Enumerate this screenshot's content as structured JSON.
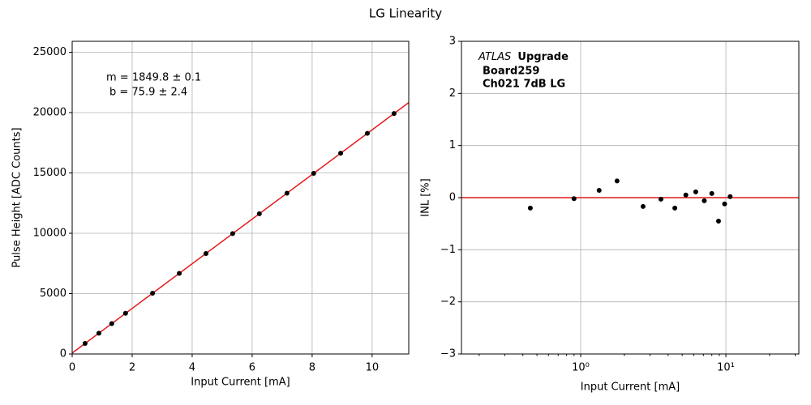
{
  "title": "LG Linearity",
  "chart_data": [
    {
      "type": "scatter",
      "x": [
        0.43,
        0.89,
        1.32,
        1.78,
        2.68,
        3.57,
        4.46,
        5.35,
        6.24,
        7.16,
        8.05,
        8.95,
        9.84,
        10.73
      ],
      "values": [
        871,
        1722,
        2518,
        3369,
        5033,
        6680,
        8326,
        9972,
        11619,
        13321,
        14967,
        16632,
        18278,
        19924
      ],
      "color": "#000000",
      "fit": {
        "x": [
          0,
          11.22
        ],
        "values": [
          75.9,
          20831
        ],
        "color": "#e41a1c"
      },
      "xlabel": "Input Current [mA]",
      "ylabel": "Pulse Height [ADC Counts]",
      "xlim": [
        0,
        11.22
      ],
      "ylim": [
        0,
        25906
      ],
      "xticks": [
        0,
        2,
        4,
        6,
        8,
        10
      ],
      "yticks": [
        0,
        5000,
        10000,
        15000,
        20000,
        25000
      ],
      "grid": true,
      "annotations": [
        "m = 1849.8 ± 0.1",
        "b = 75.9 ± 2.4"
      ]
    },
    {
      "type": "scatter",
      "x": [
        0.45,
        0.9,
        1.34,
        1.78,
        2.69,
        3.57,
        4.45,
        5.3,
        6.2,
        7.1,
        8.0,
        8.9,
        9.8,
        10.7
      ],
      "values": [
        -0.2,
        -0.02,
        0.14,
        0.32,
        -0.17,
        -0.03,
        -0.2,
        0.05,
        0.11,
        -0.06,
        0.08,
        -0.45,
        -0.12,
        0.02
      ],
      "color": "#000000",
      "hline": {
        "value": 0,
        "color": "#e41a1c"
      },
      "xlabel": "Input Current [mA]",
      "ylabel": "INL [%]",
      "xscale": "log",
      "xlim": [
        0.151,
        31.8
      ],
      "ylim": [
        -3,
        3
      ],
      "xticks": [
        {
          "value": 1,
          "label": "10⁰"
        },
        {
          "value": 10,
          "label": "10¹"
        }
      ],
      "minor_xticks": [
        0.2,
        0.3,
        0.4,
        0.5,
        0.6,
        0.7,
        0.8,
        0.9,
        2,
        3,
        4,
        5,
        6,
        7,
        8,
        9,
        20,
        30
      ],
      "yticks": [
        {
          "value": -3,
          "label": "−3"
        },
        {
          "value": -2,
          "label": "−2"
        },
        {
          "value": -1,
          "label": "−1"
        },
        0,
        1,
        2,
        3
      ],
      "grid": true,
      "annotations": [
        "ATLAS",
        "Upgrade",
        "Board259",
        "Ch021 7dB LG"
      ]
    }
  ]
}
